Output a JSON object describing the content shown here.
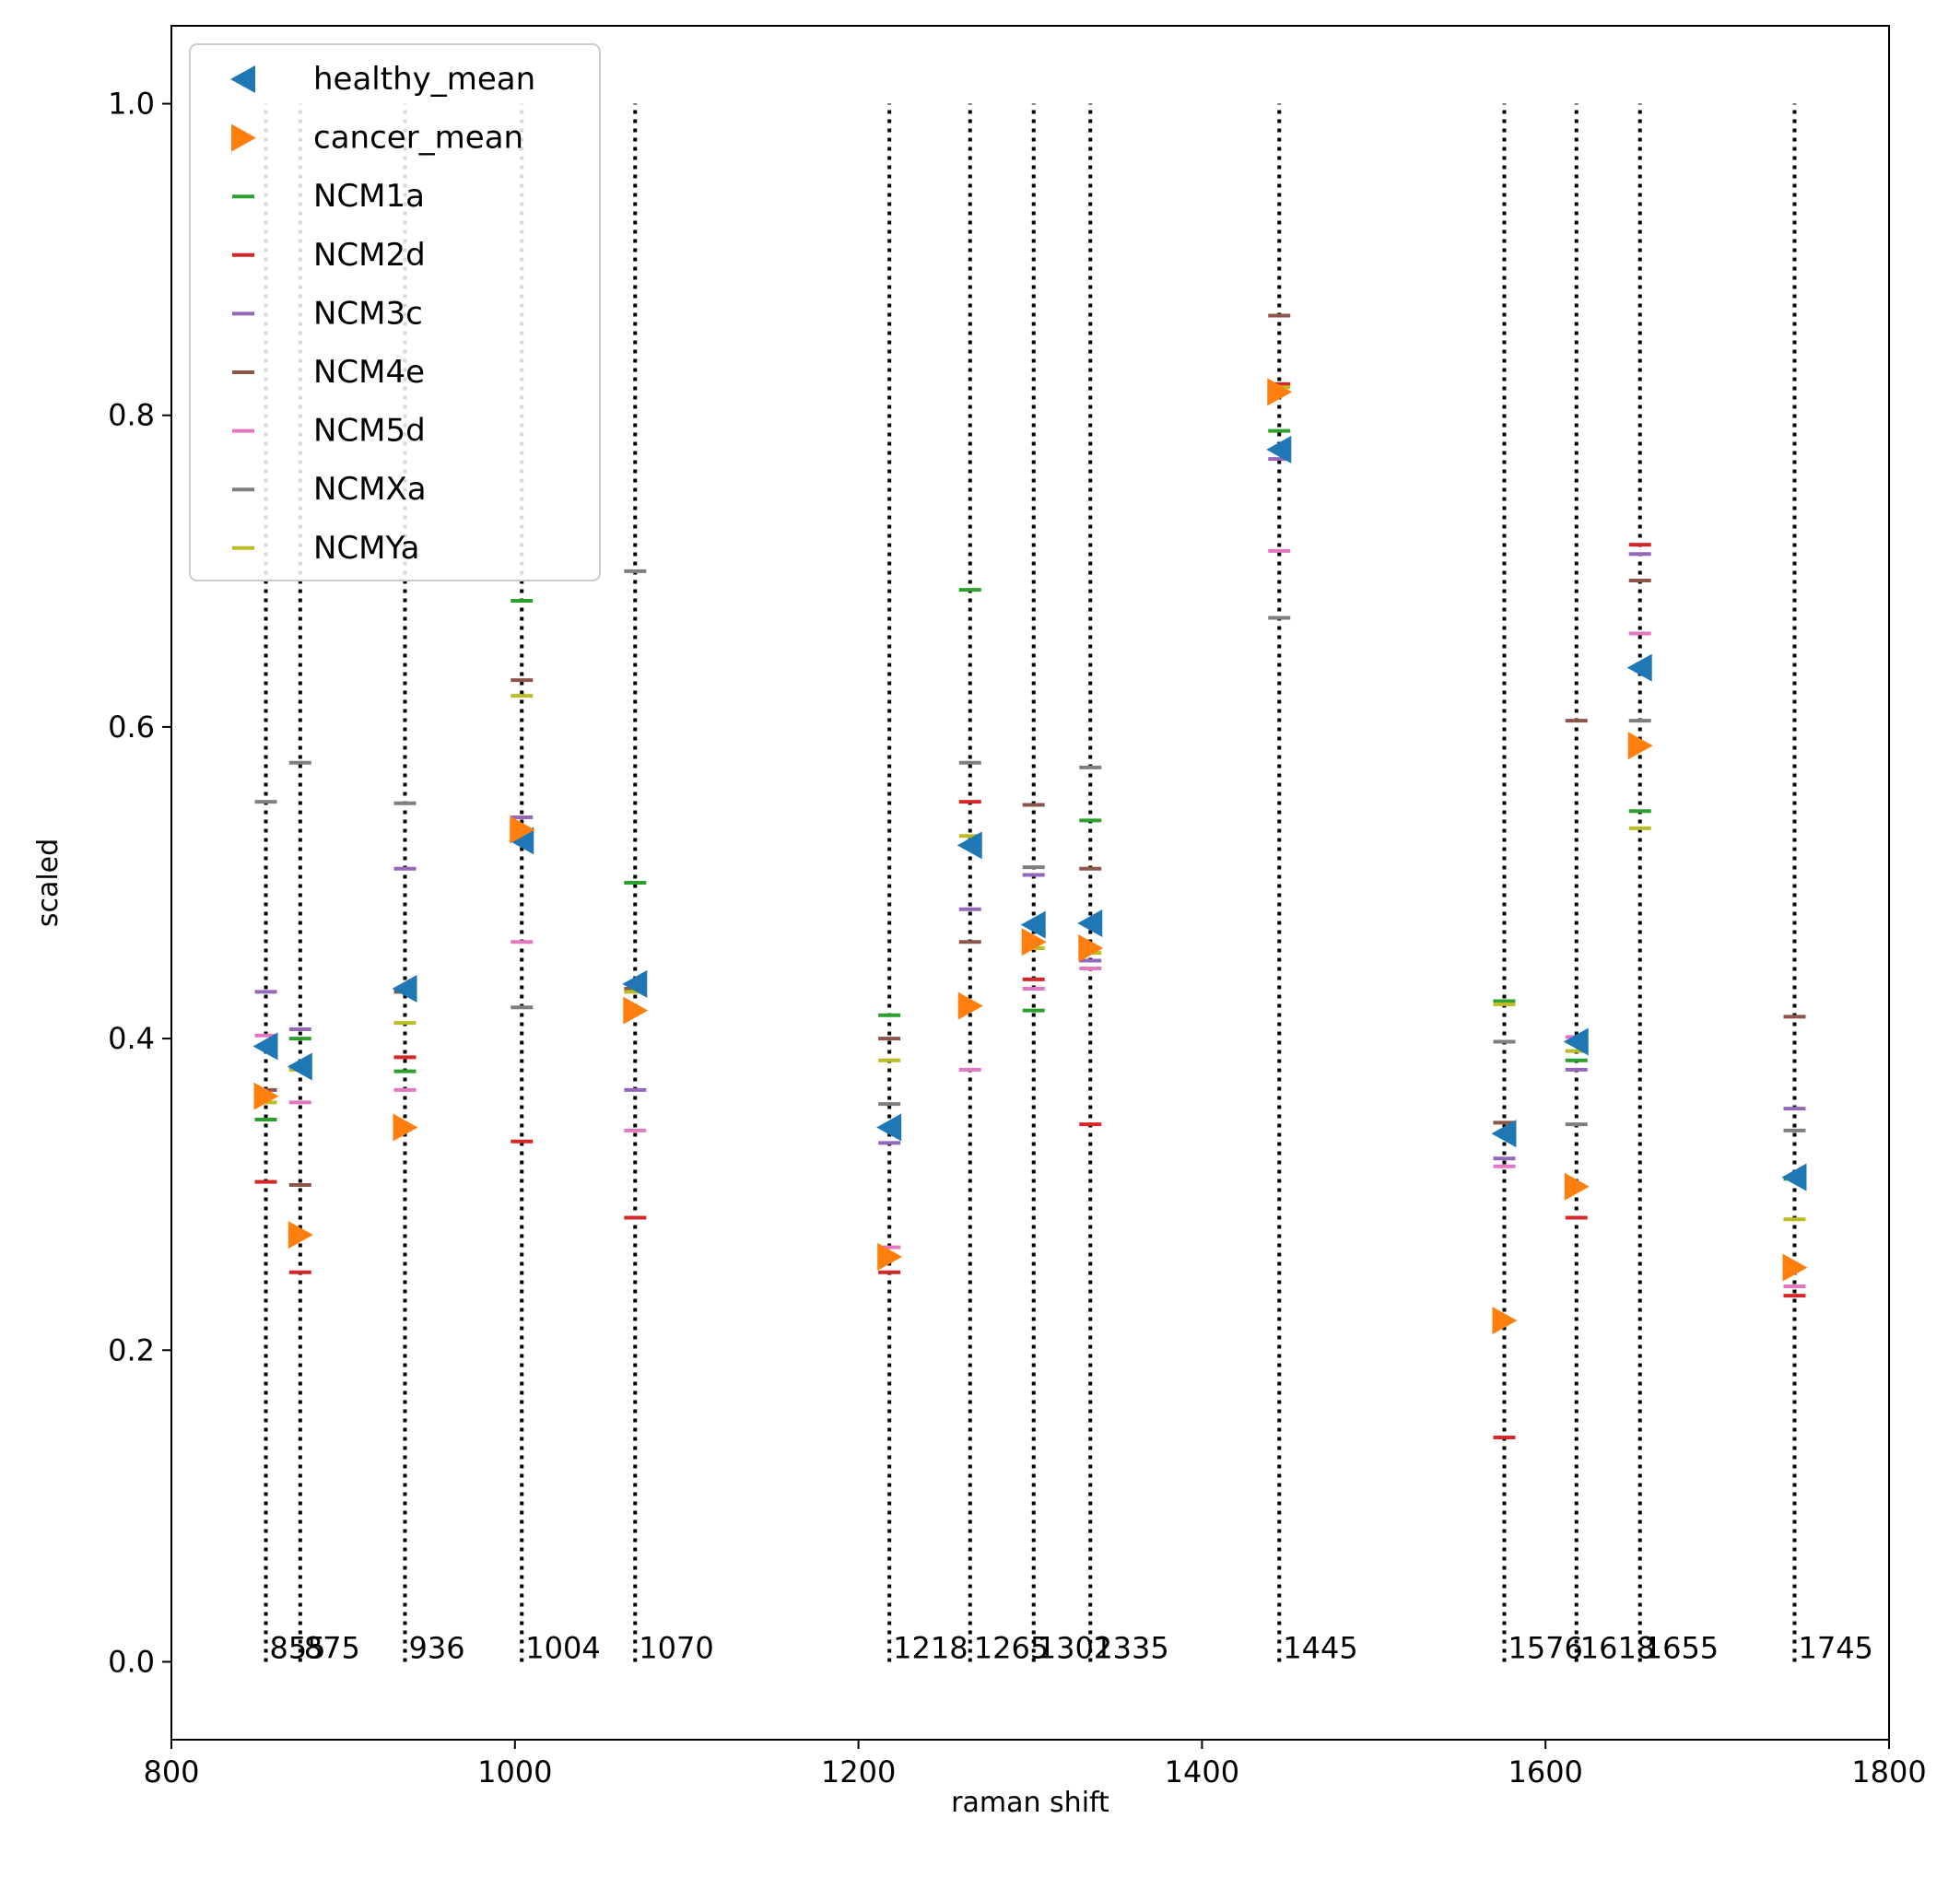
{
  "chart_data": {
    "type": "scatter",
    "xlabel": "raman shift",
    "ylabel": "scaled",
    "xlim": [
      800,
      1800
    ],
    "ylim": [
      -0.05,
      1.05
    ],
    "xticks": [
      800,
      1000,
      1200,
      1400,
      1600,
      1800
    ],
    "xtick_labels": [
      "800",
      "1000",
      "1200",
      "1400",
      "1600",
      "1800"
    ],
    "yticks": [
      0.0,
      0.2,
      0.4,
      0.6,
      0.8,
      1.0
    ],
    "ytick_labels": [
      "0.0",
      "0.2",
      "0.4",
      "0.6",
      "0.8",
      "1.0"
    ],
    "grid": false,
    "legend_position": "top-left",
    "peaks": [
      855,
      875,
      936,
      1004,
      1070,
      1218,
      1265,
      1302,
      1335,
      1445,
      1576,
      1618,
      1655,
      1745
    ],
    "peak_labels": [
      "855",
      "875",
      "936",
      "1004",
      "1070",
      "1218",
      "1265",
      "1302",
      "1335",
      "1445",
      "1576",
      "1618",
      "1655",
      "1745"
    ],
    "peak_line_range": [
      0.0,
      1.0
    ],
    "series": [
      {
        "name": "healthy_mean",
        "marker": "triangle-left",
        "color": "#1f77b4",
        "values": [
          0.395,
          0.382,
          0.432,
          0.527,
          0.435,
          0.343,
          0.524,
          0.473,
          0.474,
          0.778,
          0.339,
          0.398,
          0.638,
          0.311
        ]
      },
      {
        "name": "cancer_mean",
        "marker": "triangle-right",
        "color": "#ff7f0e",
        "values": [
          0.363,
          0.274,
          0.343,
          0.534,
          0.418,
          0.26,
          0.421,
          0.462,
          0.458,
          0.815,
          0.219,
          0.305,
          0.588,
          0.253
        ]
      },
      {
        "name": "NCM1a",
        "marker": "hline",
        "color": "#2ca02c",
        "values": [
          0.348,
          0.4,
          0.379,
          0.681,
          0.5,
          0.415,
          0.688,
          0.418,
          0.54,
          0.79,
          0.424,
          0.386,
          0.546,
          0.31
        ]
      },
      {
        "name": "NCM2d",
        "marker": "hline",
        "color": "#d62728",
        "values": [
          0.308,
          0.25,
          0.388,
          0.334,
          0.285,
          0.25,
          0.552,
          0.438,
          0.345,
          0.82,
          0.144,
          0.285,
          0.717,
          0.235
        ]
      },
      {
        "name": "NCM3c",
        "marker": "hline",
        "color": "#9467bd",
        "values": [
          0.43,
          0.406,
          0.509,
          0.542,
          0.367,
          0.333,
          0.483,
          0.505,
          0.45,
          0.772,
          0.323,
          0.38,
          0.711,
          0.355
        ]
      },
      {
        "name": "NCM4e",
        "marker": "hline",
        "color": "#8c564b",
        "values": [
          0.367,
          0.306,
          0.43,
          0.63,
          0.432,
          0.4,
          0.462,
          0.55,
          0.509,
          0.864,
          0.346,
          0.604,
          0.694,
          0.414
        ]
      },
      {
        "name": "NCM5d",
        "marker": "hline",
        "color": "#e377c2",
        "values": [
          0.402,
          0.359,
          0.367,
          0.462,
          0.341,
          0.266,
          0.38,
          0.432,
          0.445,
          0.713,
          0.318,
          0.401,
          0.66,
          0.241
        ]
      },
      {
        "name": "NCMXa",
        "marker": "hline",
        "color": "#7f7f7f",
        "values": [
          0.552,
          0.577,
          0.551,
          0.42,
          0.7,
          0.358,
          0.577,
          0.51,
          0.574,
          0.67,
          0.398,
          0.345,
          0.604,
          0.341
        ]
      },
      {
        "name": "NCMYa",
        "marker": "hline",
        "color": "#bcbd22",
        "values": [
          0.359,
          0.38,
          0.41,
          0.62,
          0.43,
          0.386,
          0.53,
          0.458,
          0.455,
          0.818,
          0.422,
          0.392,
          0.535,
          0.284
        ]
      }
    ]
  }
}
